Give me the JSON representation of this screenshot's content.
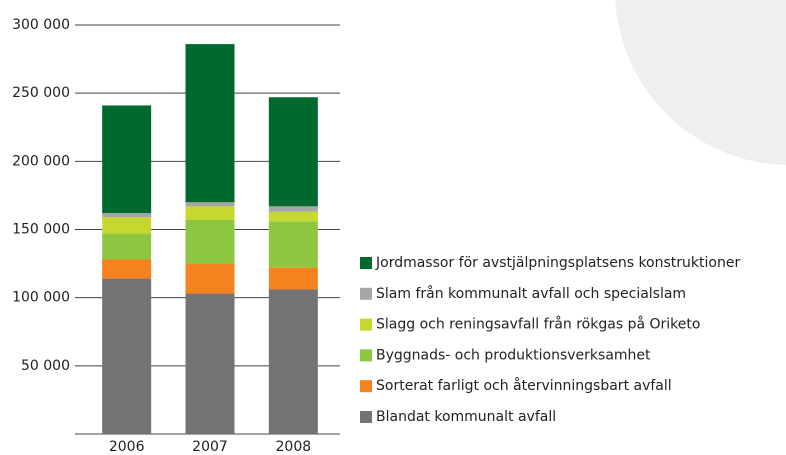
{
  "chart_data": {
    "type": "stacked_bar",
    "categories": [
      "2006",
      "2007",
      "2008"
    ],
    "series": [
      {
        "name": "Blandat kommunalt avfall",
        "color": "#737373",
        "values": [
          114000,
          103000,
          106000
        ]
      },
      {
        "name": "Sorterat farligt och återvinningsbart avfall",
        "color": "#f5821f",
        "values": [
          14000,
          22000,
          16000
        ]
      },
      {
        "name": "Byggnads- och produktionsverksamhet",
        "color": "#8dc63f",
        "values": [
          19000,
          32000,
          34000
        ]
      },
      {
        "name": "Slagg och reningsavfall från rökgas på Oriketo",
        "color": "#c4d82e",
        "values": [
          12000,
          10000,
          7000
        ]
      },
      {
        "name": "Slam från kommunalt avfall och specialslam",
        "color": "#a6a6a6",
        "values": [
          3000,
          3000,
          4000
        ]
      },
      {
        "name": "Jordmassor för avstjälpningsplatsens konstruktioner",
        "color": "#006a2e",
        "values": [
          79000,
          116000,
          80000
        ]
      }
    ],
    "ylim": [
      0,
      300000
    ],
    "yticks": [
      {
        "value": 50000,
        "label": "50 000"
      },
      {
        "value": 100000,
        "label": "100 000"
      },
      {
        "value": 150000,
        "label": "150 000"
      },
      {
        "value": 200000,
        "label": "200 000"
      },
      {
        "value": 250000,
        "label": "250 000"
      },
      {
        "value": 300000,
        "label": "300 000"
      }
    ],
    "grid": true,
    "legend": "right"
  }
}
